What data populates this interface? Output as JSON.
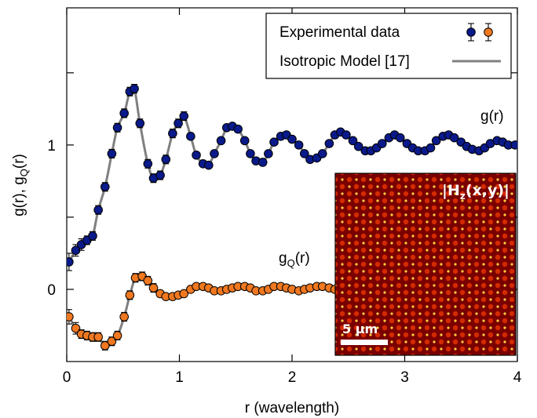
{
  "chart_data": {
    "type": "scatter",
    "xlabel": "r (wavelength)",
    "ylabel_parts": [
      "g(r), g",
      "Q",
      "(r)"
    ],
    "xlim": [
      0,
      4
    ],
    "ylim": [
      -0.5,
      1.95
    ],
    "xticks": [
      0,
      1,
      2,
      3,
      4
    ],
    "x_tick_labels": [
      "0",
      "1",
      "2",
      "3",
      "4"
    ],
    "yticks": [
      0,
      0.5,
      1,
      1.5
    ],
    "y_tick_labels": [
      "0",
      "",
      "1",
      ""
    ],
    "grid": false,
    "legend": {
      "position": "top-right",
      "entries": [
        {
          "label": "Experimental data",
          "kind": "points"
        },
        {
          "label": "Isotropic Model [17]",
          "kind": "line"
        }
      ]
    },
    "annotations": {
      "g_label": "g(r)",
      "gq_label_parts": [
        "g",
        "Q",
        "(r)"
      ]
    },
    "series": [
      {
        "key": "g",
        "color": "#0a1a8a",
        "x": [
          0.02,
          0.08,
          0.13,
          0.18,
          0.23,
          0.28,
          0.34,
          0.4,
          0.45,
          0.51,
          0.56,
          0.6,
          0.65,
          0.72,
          0.77,
          0.83,
          0.88,
          0.94,
          0.99,
          1.04,
          1.1,
          1.15,
          1.21,
          1.26,
          1.31,
          1.37,
          1.42,
          1.47,
          1.52,
          1.58,
          1.63,
          1.68,
          1.74,
          1.79,
          1.84,
          1.9,
          1.95,
          2.0,
          2.06,
          2.11,
          2.16,
          2.22,
          2.27,
          2.33,
          2.38,
          2.43,
          2.48,
          2.54,
          2.59,
          2.65,
          2.7,
          2.75,
          2.8,
          2.86,
          2.91,
          2.96,
          3.02,
          3.07,
          3.12,
          3.18,
          3.23,
          3.28,
          3.34,
          3.39,
          3.44,
          3.5,
          3.55,
          3.6,
          3.66,
          3.71,
          3.76,
          3.82,
          3.87,
          3.92,
          3.98
        ],
        "y": [
          0.19,
          0.27,
          0.31,
          0.34,
          0.37,
          0.55,
          0.71,
          0.94,
          1.12,
          1.22,
          1.37,
          1.39,
          1.15,
          0.87,
          0.77,
          0.79,
          0.9,
          1.08,
          1.15,
          1.2,
          1.06,
          0.93,
          0.87,
          0.86,
          0.94,
          1.03,
          1.12,
          1.13,
          1.11,
          1.03,
          0.94,
          0.89,
          0.88,
          0.94,
          1.02,
          1.06,
          1.07,
          1.04,
          1.0,
          0.94,
          0.9,
          0.91,
          0.94,
          1.01,
          1.07,
          1.09,
          1.07,
          1.03,
          0.99,
          0.96,
          0.96,
          0.98,
          1.01,
          1.05,
          1.07,
          1.05,
          1.01,
          0.98,
          0.96,
          0.96,
          0.98,
          1.03,
          1.06,
          1.07,
          1.05,
          1.02,
          0.99,
          0.97,
          0.96,
          0.98,
          1.01,
          1.03,
          1.02,
          1.0,
          1.0
        ],
        "err": [
          0.06,
          0.04,
          0.04,
          0.03,
          0.03,
          0.03,
          0.03,
          0.03,
          0.03,
          0.03,
          0.03,
          0.03,
          0.03,
          0.03,
          0.03,
          0.03,
          0.03,
          0.03,
          0.03,
          0.03,
          0.02,
          0.02,
          0.02,
          0.02,
          0.02,
          0.02,
          0.02,
          0.02,
          0.02,
          0.02,
          0.02,
          0.02,
          0.02,
          0.02,
          0.02,
          0.02,
          0.02,
          0.02,
          0.02,
          0.02,
          0.02,
          0.02,
          0.02,
          0.02,
          0.02,
          0.02,
          0.02,
          0.02,
          0.02,
          0.02,
          0.02,
          0.02,
          0.02,
          0.02,
          0.02,
          0.02,
          0.02,
          0.02,
          0.02,
          0.02,
          0.02,
          0.02,
          0.02,
          0.02,
          0.02,
          0.02,
          0.02,
          0.02,
          0.02,
          0.02,
          0.02,
          0.02,
          0.02,
          0.02,
          0.02
        ]
      },
      {
        "key": "gq",
        "color": "#f07820",
        "x": [
          0.02,
          0.08,
          0.13,
          0.18,
          0.23,
          0.28,
          0.34,
          0.4,
          0.45,
          0.51,
          0.56,
          0.61,
          0.67,
          0.72,
          0.77,
          0.83,
          0.88,
          0.94,
          0.99,
          1.04,
          1.1,
          1.15,
          1.21,
          1.26,
          1.31,
          1.37,
          1.42,
          1.47,
          1.52,
          1.58,
          1.63,
          1.68,
          1.74,
          1.79,
          1.84,
          1.9,
          1.95,
          2.0,
          2.06,
          2.11,
          2.16,
          2.22,
          2.27,
          2.33,
          2.38
        ],
        "y": [
          -0.19,
          -0.27,
          -0.31,
          -0.32,
          -0.33,
          -0.33,
          -0.39,
          -0.36,
          -0.32,
          -0.19,
          -0.04,
          0.08,
          0.09,
          0.06,
          0.01,
          -0.03,
          -0.05,
          -0.05,
          -0.04,
          -0.03,
          0.0,
          0.02,
          0.02,
          0.01,
          -0.01,
          -0.01,
          0.0,
          0.01,
          0.02,
          0.02,
          0.01,
          -0.01,
          -0.01,
          0.0,
          0.02,
          0.02,
          0.01,
          0.0,
          -0.01,
          0.0,
          0.01,
          0.02,
          0.02,
          0.01,
          0.0
        ],
        "err": [
          0.05,
          0.04,
          0.03,
          0.03,
          0.03,
          0.03,
          0.03,
          0.03,
          0.03,
          0.03,
          0.03,
          0.03,
          0.03,
          0.03,
          0.03,
          0.02,
          0.02,
          0.02,
          0.02,
          0.02,
          0.02,
          0.02,
          0.02,
          0.02,
          0.02,
          0.02,
          0.02,
          0.02,
          0.02,
          0.02,
          0.02,
          0.02,
          0.02,
          0.02,
          0.02,
          0.02,
          0.02,
          0.02,
          0.02,
          0.02,
          0.02,
          0.02,
          0.02,
          0.02,
          0.02
        ]
      }
    ],
    "model_color": "#808080",
    "inset": {
      "label_parts": [
        "|H",
        "z",
        "(x,y)|"
      ],
      "scale_bar_label": "5 µm",
      "colors": [
        "#7a0000",
        "#d42a00",
        "#ffd040"
      ]
    }
  }
}
